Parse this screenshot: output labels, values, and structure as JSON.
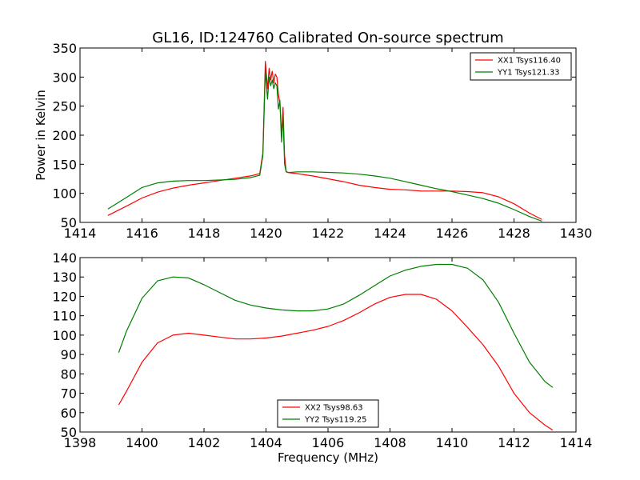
{
  "title": "GL16, ID:124760 Calibrated On-source spectrum",
  "colors": {
    "red": "#ff0000",
    "green": "#007f00"
  },
  "chart_data": [
    {
      "type": "line",
      "title": "GL16, ID:124760 Calibrated On-source spectrum",
      "xlabel": "",
      "ylabel": "Power in Kelvin",
      "xlim": [
        1414,
        1430
      ],
      "ylim": [
        50,
        350
      ],
      "xticks": [
        1414,
        1416,
        1418,
        1420,
        1422,
        1424,
        1426,
        1428,
        1430
      ],
      "yticks": [
        50,
        100,
        150,
        200,
        250,
        300,
        350
      ],
      "grid": false,
      "legend_position": "top-right",
      "series": [
        {
          "name": "XX1 Tsys116.40",
          "color": "#ff0000",
          "x": [
            1414.9,
            1415.5,
            1416,
            1416.5,
            1417,
            1417.5,
            1418,
            1418.5,
            1419,
            1419.5,
            1419.8,
            1419.9,
            1419.98,
            1420.05,
            1420.1,
            1420.15,
            1420.2,
            1420.25,
            1420.3,
            1420.35,
            1420.4,
            1420.45,
            1420.5,
            1420.55,
            1420.6,
            1420.65,
            1420.7,
            1420.8,
            1421,
            1421.5,
            1422,
            1422.5,
            1423,
            1423.5,
            1424,
            1424.5,
            1425,
            1425.5,
            1426,
            1426.5,
            1427,
            1427.5,
            1428,
            1428.5,
            1428.9
          ],
          "values": [
            62,
            78,
            92,
            102,
            109,
            114,
            118,
            122,
            126,
            130,
            134,
            170,
            327,
            280,
            315,
            295,
            310,
            290,
            305,
            300,
            270,
            255,
            200,
            248,
            165,
            138,
            136,
            135,
            134,
            130,
            125,
            120,
            114,
            110,
            107,
            106,
            104,
            104,
            104,
            103,
            101,
            94,
            82,
            66,
            55
          ]
        },
        {
          "name": "YY1 Tsys121.33",
          "color": "#007f00",
          "x": [
            1414.9,
            1415.5,
            1416,
            1416.5,
            1417,
            1417.5,
            1418,
            1418.5,
            1419,
            1419.5,
            1419.8,
            1419.9,
            1419.98,
            1420.05,
            1420.1,
            1420.15,
            1420.2,
            1420.25,
            1420.3,
            1420.35,
            1420.4,
            1420.45,
            1420.5,
            1420.55,
            1420.6,
            1420.65,
            1420.7,
            1420.8,
            1421,
            1421.5,
            1422,
            1422.5,
            1423,
            1423.5,
            1424,
            1424.5,
            1425,
            1425.5,
            1426,
            1426.5,
            1427,
            1427.5,
            1428,
            1428.5,
            1428.9
          ],
          "values": [
            73,
            93,
            110,
            118,
            121,
            122,
            122,
            123,
            124,
            127,
            131,
            165,
            312,
            262,
            300,
            285,
            295,
            280,
            290,
            285,
            245,
            260,
            188,
            235,
            150,
            137,
            136,
            136,
            137,
            137,
            136,
            135,
            133,
            130,
            126,
            120,
            114,
            108,
            103,
            97,
            91,
            83,
            72,
            60,
            52
          ]
        }
      ]
    },
    {
      "type": "line",
      "title": "",
      "xlabel": "Frequency (MHz)",
      "ylabel": "",
      "xlim": [
        1398,
        1414
      ],
      "ylim": [
        50,
        140
      ],
      "xticks": [
        1398,
        1400,
        1402,
        1404,
        1406,
        1408,
        1410,
        1412,
        1414
      ],
      "yticks": [
        50,
        60,
        70,
        80,
        90,
        100,
        110,
        120,
        130,
        140
      ],
      "grid": false,
      "legend_position": "bottom-center",
      "series": [
        {
          "name": "XX2 Tsys98.63",
          "color": "#ff0000",
          "x": [
            1399.25,
            1399.5,
            1400,
            1400.5,
            1401,
            1401.5,
            1402,
            1402.5,
            1403,
            1403.5,
            1404,
            1404.5,
            1405,
            1405.5,
            1406,
            1406.5,
            1407,
            1407.5,
            1408,
            1408.5,
            1409,
            1409.5,
            1410,
            1410.5,
            1411,
            1411.5,
            1412,
            1412.5,
            1413,
            1413.25
          ],
          "values": [
            64,
            71,
            86,
            96,
            100,
            101,
            100,
            99,
            98,
            98,
            98.5,
            99.5,
            101,
            102.5,
            104.5,
            107.5,
            111.5,
            116,
            119.5,
            121,
            121,
            118.5,
            112.5,
            104,
            95,
            84,
            70,
            60,
            53.5,
            51
          ]
        },
        {
          "name": "YY2 Tsys119.25",
          "color": "#007f00",
          "x": [
            1399.25,
            1399.5,
            1400,
            1400.5,
            1401,
            1401.5,
            1402,
            1402.5,
            1403,
            1403.5,
            1404,
            1404.5,
            1405,
            1405.5,
            1406,
            1406.5,
            1407,
            1407.5,
            1408,
            1408.5,
            1409,
            1409.5,
            1410,
            1410.5,
            1411,
            1411.5,
            1412,
            1412.5,
            1413,
            1413.25
          ],
          "values": [
            91,
            102,
            119,
            128,
            130,
            129.5,
            126,
            122,
            118,
            115.5,
            114,
            113,
            112.5,
            112.5,
            113.5,
            116,
            120.5,
            125.5,
            130.5,
            133.5,
            135.5,
            136.5,
            136.5,
            134.5,
            128.5,
            117,
            101,
            86,
            76,
            73
          ]
        }
      ]
    }
  ]
}
